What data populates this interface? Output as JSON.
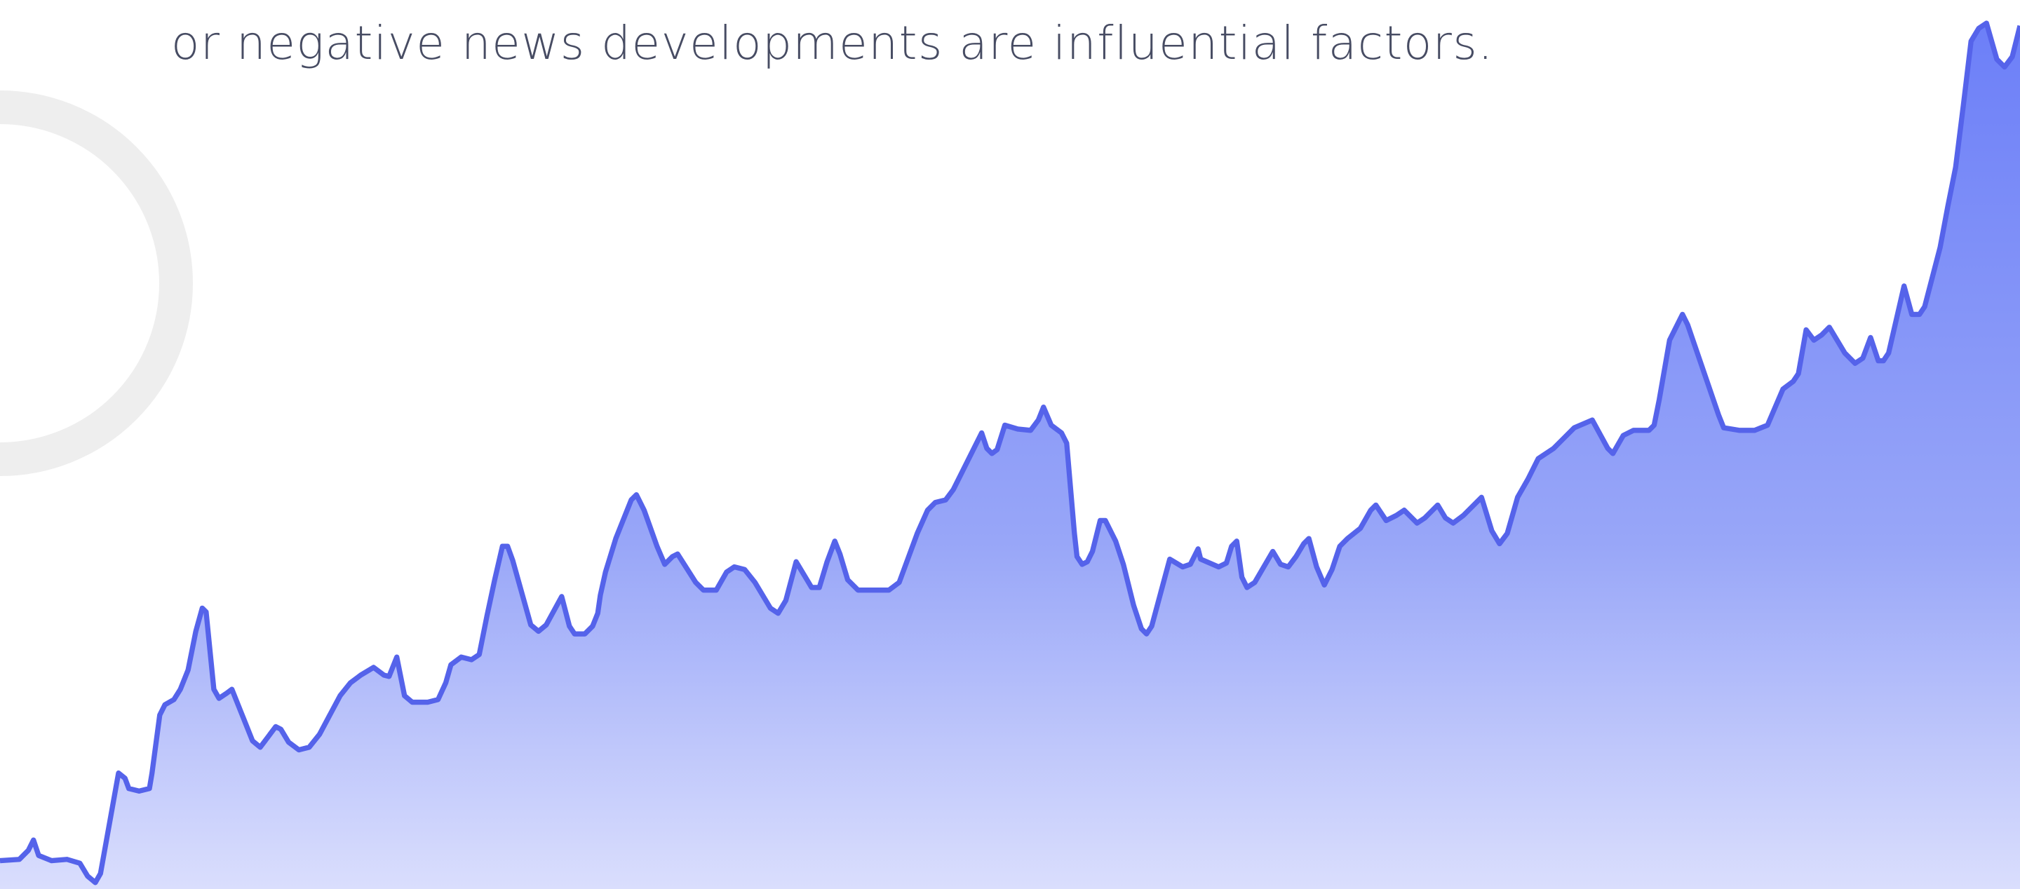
{
  "body": {
    "text": "or negative news developments are influential factors."
  }
}
